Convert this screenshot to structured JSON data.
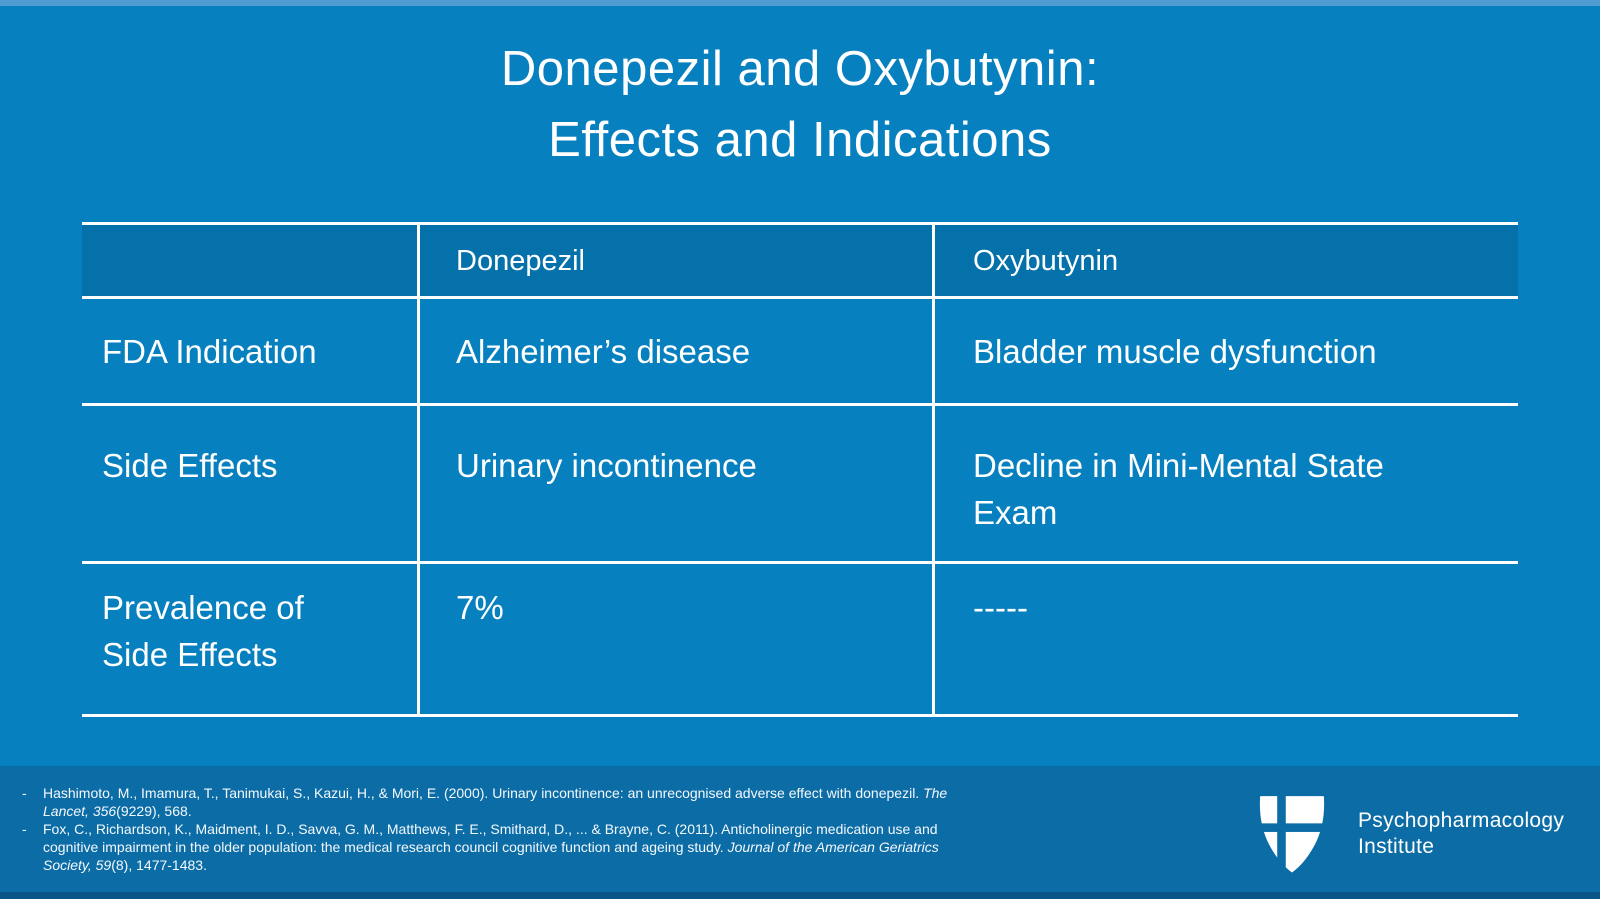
{
  "slide": {
    "title_line1": "Donepezil and Oxybutynin:",
    "title_line2": "Effects and Indications"
  },
  "table": {
    "header": {
      "col1": "",
      "col2": "Donepezil",
      "col3": "Oxybutynin"
    },
    "rows": [
      {
        "label": "FDA Indication",
        "donepezil": "Alzheimer’s disease",
        "oxybutynin": "Bladder muscle dysfunction"
      },
      {
        "label": "Side Effects",
        "donepezil": "Urinary incontinence",
        "oxybutynin": "Decline in Mini-Mental State Exam"
      },
      {
        "label": "Prevalence of Side Effects",
        "donepezil": "7%",
        "oxybutynin": "-----"
      }
    ]
  },
  "references": {
    "marker": "-",
    "items": [
      {
        "segments": [
          {
            "text": "Hashimoto, M., Imamura, T., Tanimukai, S., Kazui, H., & Mori, E. (2000). Urinary incontinence: an unrecognised adverse effect with donepezil. ",
            "italic": false
          },
          {
            "text": "The Lancet, 356",
            "italic": true
          },
          {
            "text": "(9229), 568.",
            "italic": false
          }
        ]
      },
      {
        "segments": [
          {
            "text": "Fox, C., Richardson, K., Maidment, I. D., Savva, G. M., Matthews, F. E., Smithard, D., ... & Brayne, C. (2011). Anticholinergic medication use and cognitive impairment in the older population: the medical research council cognitive function and ageing study. ",
            "italic": false
          },
          {
            "text": "Journal of the American Geriatrics Society, 59",
            "italic": true
          },
          {
            "text": "(8), 1477-1483.",
            "italic": false
          }
        ]
      }
    ]
  },
  "logo": {
    "line1": "Psychopharmacology",
    "line2": "Institute"
  },
  "colors": {
    "background": "#0680BF",
    "table_header": "#0571AB",
    "footer_band": "#0C6CA6",
    "bottom_strip": "#0B5487",
    "top_strip": "#4E9CD2",
    "text": "#FFFFFF"
  }
}
